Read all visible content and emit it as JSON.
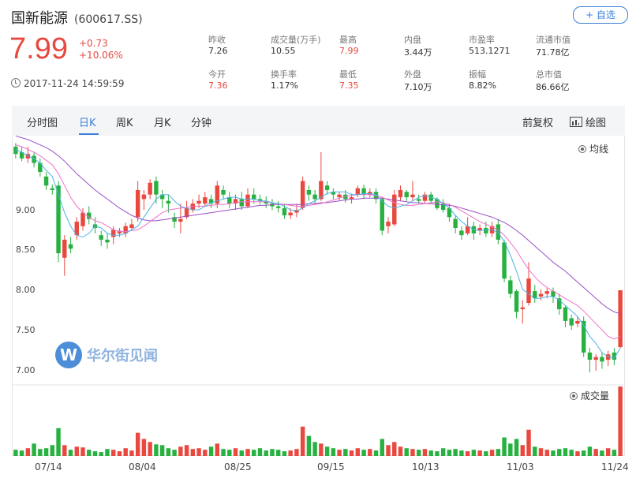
{
  "stock": {
    "name": "国新能源",
    "code": "(600617.SS)",
    "watch_label": "+ 自选",
    "price": "7.99",
    "change": "+0.73",
    "change_pct": "+10.06%",
    "timestamp": "2017-11-24 14:59:59"
  },
  "stats": [
    {
      "label": "昨收",
      "value": "7.26",
      "red": false
    },
    {
      "label": "成交量(万手)",
      "value": "10.55",
      "red": false
    },
    {
      "label": "最高",
      "value": "7.99",
      "red": true
    },
    {
      "label": "内盘",
      "value": "3.44万",
      "red": false
    },
    {
      "label": "市盈率",
      "value": "513.1271",
      "red": false
    },
    {
      "label": "流通市值",
      "value": "71.78亿",
      "red": false
    },
    {
      "label": "今开",
      "value": "7.36",
      "red": true
    },
    {
      "label": "换手率",
      "value": "1.17%",
      "red": false
    },
    {
      "label": "最低",
      "value": "7.35",
      "red": true
    },
    {
      "label": "外盘",
      "value": "7.10万",
      "red": false
    },
    {
      "label": "振幅",
      "value": "8.82%",
      "red": false
    },
    {
      "label": "总市值",
      "value": "86.66亿",
      "red": false
    }
  ],
  "tabs": [
    "分时图",
    "日K",
    "周K",
    "月K",
    "分钟"
  ],
  "active_tab": "日K",
  "right_tabs": {
    "adjust": "前复权",
    "draw": "绘图"
  },
  "legend": {
    "ma": "均线",
    "volume": "成交量"
  },
  "watermark": {
    "logo": "W",
    "text": "华尔街见闻"
  },
  "colors": {
    "up": "#e9483f",
    "down": "#27b140",
    "ma5": "#4cb3e8",
    "ma10": "#f070c8",
    "ma20": "#9b4fc8",
    "accent": "#3d80d8"
  },
  "chart_data": {
    "type": "candlestick",
    "y_ticks": [
      "9.00",
      "8.50",
      "8.00",
      "7.50",
      "7.00"
    ],
    "x_labels": [
      "07/14",
      "08/04",
      "08/25",
      "09/15",
      "10/13",
      "11/03",
      "11/24"
    ],
    "ylim": [
      6.95,
      9.65
    ],
    "candles": [
      [
        9.58,
        9.5,
        9.62,
        9.45
      ],
      [
        9.52,
        9.45,
        9.58,
        9.42
      ],
      [
        9.45,
        9.5,
        9.58,
        9.4
      ],
      [
        9.48,
        9.4,
        9.52,
        9.35
      ],
      [
        9.4,
        9.3,
        9.45,
        9.25
      ],
      [
        9.25,
        9.15,
        9.3,
        9.1
      ],
      [
        9.12,
        9.1,
        9.16,
        9.05
      ],
      [
        9.15,
        8.4,
        9.2,
        8.3
      ],
      [
        8.35,
        8.55,
        8.6,
        8.15
      ],
      [
        8.5,
        8.45,
        8.58,
        8.4
      ],
      [
        8.6,
        8.75,
        8.8,
        8.55
      ],
      [
        8.7,
        8.85,
        8.9,
        8.65
      ],
      [
        8.85,
        8.78,
        8.92,
        8.72
      ],
      [
        8.72,
        8.68,
        8.8,
        8.62
      ],
      [
        8.6,
        8.55,
        8.65,
        8.48
      ],
      [
        8.55,
        8.52,
        8.62,
        8.45
      ],
      [
        8.58,
        8.66,
        8.7,
        8.5
      ],
      [
        8.62,
        8.65,
        8.68,
        8.58
      ],
      [
        8.62,
        8.7,
        8.74,
        8.58
      ],
      [
        8.68,
        8.72,
        8.78,
        8.66
      ],
      [
        8.8,
        9.1,
        9.2,
        8.75
      ],
      [
        9.0,
        9.05,
        9.1,
        8.88
      ],
      [
        9.05,
        9.18,
        9.22,
        9.0
      ],
      [
        9.2,
        9.05,
        9.25,
        8.95
      ],
      [
        9.05,
        9.0,
        9.1,
        8.9
      ],
      [
        8.98,
        8.95,
        9.05,
        8.85
      ],
      [
        8.8,
        8.75,
        8.85,
        8.68
      ],
      [
        8.75,
        8.78,
        8.95,
        8.62
      ],
      [
        8.8,
        8.9,
        8.98,
        8.78
      ],
      [
        8.88,
        8.95,
        9.0,
        8.85
      ],
      [
        8.95,
        8.98,
        9.05,
        8.9
      ],
      [
        8.95,
        9.02,
        9.08,
        8.92
      ],
      [
        9.0,
        8.95,
        9.05,
        8.9
      ],
      [
        8.95,
        9.15,
        9.2,
        8.9
      ],
      [
        9.1,
        9.05,
        9.15,
        9.0
      ],
      [
        9.02,
        8.95,
        9.08,
        8.9
      ],
      [
        8.95,
        9.0,
        9.05,
        8.88
      ],
      [
        9.0,
        8.92,
        9.08,
        8.88
      ],
      [
        8.92,
        9.05,
        9.12,
        8.9
      ],
      [
        9.05,
        9.0,
        9.12,
        8.95
      ],
      [
        9.0,
        8.98,
        9.05,
        8.94
      ],
      [
        8.98,
        8.95,
        9.03,
        8.9
      ],
      [
        8.95,
        8.92,
        9.0,
        8.88
      ],
      [
        8.92,
        8.9,
        8.98,
        8.85
      ],
      [
        8.9,
        8.82,
        8.95,
        8.78
      ],
      [
        8.82,
        8.85,
        8.9,
        8.78
      ],
      [
        8.85,
        8.88,
        8.95,
        8.8
      ],
      [
        8.9,
        9.2,
        9.25,
        8.88
      ],
      [
        9.1,
        9.05,
        9.15,
        8.98
      ],
      [
        9.05,
        9.0,
        9.1,
        8.95
      ],
      [
        9.0,
        9.2,
        9.52,
        8.98
      ],
      [
        9.15,
        9.1,
        9.2,
        9.05
      ],
      [
        9.08,
        9.05,
        9.12,
        9.0
      ],
      [
        9.02,
        9.05,
        9.08,
        8.98
      ],
      [
        9.05,
        9.0,
        9.1,
        8.96
      ],
      [
        9.0,
        9.02,
        9.06,
        8.95
      ],
      [
        9.05,
        9.12,
        9.15,
        9.02
      ],
      [
        9.12,
        9.05,
        9.16,
        9.0
      ],
      [
        9.05,
        9.08,
        9.12,
        9.02
      ],
      [
        9.08,
        9.0,
        9.12,
        8.95
      ],
      [
        9.0,
        8.65,
        9.02,
        8.6
      ],
      [
        8.7,
        8.75,
        8.8,
        8.62
      ],
      [
        8.72,
        9.05,
        9.1,
        8.7
      ],
      [
        9.02,
        9.1,
        9.15,
        8.98
      ],
      [
        9.08,
        9.02,
        9.1,
        8.98
      ],
      [
        9.02,
        9.05,
        9.2,
        8.98
      ],
      [
        9.0,
        8.98,
        9.05,
        8.95
      ],
      [
        8.98,
        9.05,
        9.08,
        8.95
      ],
      [
        9.05,
        8.98,
        9.08,
        8.95
      ],
      [
        9.0,
        8.9,
        9.02,
        8.88
      ],
      [
        8.95,
        8.88,
        9.0,
        8.85
      ],
      [
        8.9,
        8.8,
        8.95,
        8.75
      ],
      [
        8.78,
        8.68,
        8.82,
        8.62
      ],
      [
        8.65,
        8.6,
        8.7,
        8.55
      ],
      [
        8.62,
        8.7,
        8.8,
        8.6
      ],
      [
        8.7,
        8.62,
        8.75,
        8.55
      ],
      [
        8.65,
        8.68,
        8.72,
        8.6
      ],
      [
        8.68,
        8.62,
        8.75,
        8.58
      ],
      [
        8.62,
        8.7,
        8.75,
        8.58
      ],
      [
        8.72,
        8.55,
        8.78,
        8.5
      ],
      [
        8.52,
        8.12,
        8.55,
        8.08
      ],
      [
        8.1,
        7.95,
        8.15,
        7.9
      ],
      [
        7.98,
        7.75,
        8.0,
        7.68
      ],
      [
        7.78,
        7.8,
        7.88,
        7.62
      ],
      [
        7.85,
        8.12,
        8.3,
        7.82
      ],
      [
        7.98,
        7.9,
        8.05,
        7.85
      ],
      [
        7.92,
        7.95,
        8.0,
        7.88
      ],
      [
        7.95,
        7.98,
        8.02,
        7.9
      ],
      [
        7.98,
        7.92,
        8.02,
        7.85
      ],
      [
        7.9,
        7.78,
        7.95,
        7.72
      ],
      [
        7.8,
        7.65,
        7.82,
        7.58
      ],
      [
        7.68,
        7.6,
        7.72,
        7.55
      ],
      [
        7.62,
        7.65,
        7.7,
        7.58
      ],
      [
        7.65,
        7.3,
        7.7,
        7.25
      ],
      [
        7.3,
        7.22,
        7.35,
        7.08
      ],
      [
        7.22,
        7.25,
        7.28,
        7.1
      ],
      [
        7.25,
        7.2,
        7.3,
        7.12
      ],
      [
        7.22,
        7.28,
        7.32,
        7.15
      ],
      [
        7.3,
        7.22,
        7.35,
        7.16
      ],
      [
        7.36,
        7.99,
        7.99,
        7.35
      ]
    ],
    "ma5": [
      9.55,
      9.52,
      9.48,
      9.45,
      9.4,
      9.32,
      9.25,
      9.05,
      8.85,
      8.7,
      8.6,
      8.58,
      8.62,
      8.7,
      8.68,
      8.62,
      8.6,
      8.6,
      8.62,
      8.66,
      8.7,
      8.8,
      8.9,
      9.0,
      9.05,
      9.05,
      8.98,
      8.92,
      8.9,
      8.88,
      8.88,
      8.92,
      8.96,
      8.98,
      9.0,
      9.02,
      9.02,
      9.0,
      9.0,
      9.0,
      8.98,
      8.98,
      8.96,
      8.95,
      8.92,
      8.88,
      8.87,
      8.9,
      8.95,
      8.98,
      9.02,
      9.06,
      9.08,
      9.08,
      9.08,
      9.05,
      9.05,
      9.06,
      9.06,
      9.05,
      8.98,
      8.92,
      8.9,
      8.92,
      8.94,
      8.98,
      9.02,
      9.04,
      9.02,
      9.0,
      8.95,
      8.9,
      8.82,
      8.75,
      8.7,
      8.66,
      8.65,
      8.66,
      8.66,
      8.63,
      8.53,
      8.38,
      8.2,
      8.0,
      7.95,
      7.9,
      7.9,
      7.92,
      7.92,
      7.88,
      7.82,
      7.76,
      7.7,
      7.6,
      7.48,
      7.4,
      7.3,
      7.25,
      7.24,
      7.35
    ],
    "ma10": [
      9.6,
      9.58,
      9.55,
      9.52,
      9.48,
      9.43,
      9.38,
      9.28,
      9.15,
      9.02,
      8.92,
      8.85,
      8.8,
      8.76,
      8.74,
      8.7,
      8.66,
      8.64,
      8.64,
      8.65,
      8.66,
      8.7,
      8.75,
      8.8,
      8.85,
      8.88,
      8.89,
      8.9,
      8.91,
      8.92,
      8.92,
      8.92,
      8.93,
      8.94,
      8.94,
      8.95,
      8.96,
      8.97,
      8.97,
      8.97,
      8.97,
      8.97,
      8.96,
      8.95,
      8.94,
      8.93,
      8.92,
      8.92,
      8.93,
      8.94,
      8.95,
      8.97,
      8.99,
      9.01,
      9.03,
      9.04,
      9.05,
      9.05,
      9.05,
      9.04,
      9.02,
      8.99,
      8.96,
      8.94,
      8.93,
      8.93,
      8.94,
      8.95,
      8.96,
      8.97,
      8.96,
      8.94,
      8.91,
      8.87,
      8.83,
      8.79,
      8.75,
      8.72,
      8.69,
      8.66,
      8.6,
      8.52,
      8.43,
      8.32,
      8.22,
      8.14,
      8.07,
      8.02,
      7.98,
      7.94,
      7.9,
      7.86,
      7.82,
      7.76,
      7.69,
      7.62,
      7.55,
      7.48,
      7.45,
      7.48
    ],
    "ma20": [
      9.7,
      9.68,
      9.66,
      9.63,
      9.6,
      9.57,
      9.53,
      9.48,
      9.42,
      9.35,
      9.28,
      9.22,
      9.16,
      9.1,
      9.05,
      9.0,
      8.95,
      8.9,
      8.86,
      8.82,
      8.79,
      8.77,
      8.76,
      8.76,
      8.77,
      8.78,
      8.79,
      8.8,
      8.81,
      8.82,
      8.83,
      8.84,
      8.85,
      8.86,
      8.87,
      8.88,
      8.89,
      8.9,
      8.91,
      8.92,
      8.93,
      8.93,
      8.94,
      8.94,
      8.94,
      8.94,
      8.94,
      8.94,
      8.95,
      8.95,
      8.96,
      8.96,
      8.97,
      8.98,
      8.99,
      9.0,
      9.0,
      9.01,
      9.01,
      9.01,
      9.01,
      9.0,
      8.99,
      8.98,
      8.97,
      8.96,
      8.96,
      8.95,
      8.95,
      8.94,
      8.94,
      8.93,
      8.92,
      8.9,
      8.88,
      8.86,
      8.84,
      8.82,
      8.8,
      8.77,
      8.74,
      8.7,
      8.65,
      8.6,
      8.54,
      8.48,
      8.42,
      8.36,
      8.3,
      8.25,
      8.2,
      8.14,
      8.08,
      8.02,
      7.96,
      7.9,
      7.84,
      7.79,
      7.75,
      7.73
    ],
    "volume": [
      8,
      7,
      10,
      16,
      9,
      10,
      14,
      36,
      14,
      8,
      12,
      11,
      8,
      6,
      5,
      9,
      8,
      6,
      10,
      7,
      30,
      22,
      18,
      15,
      14,
      10,
      8,
      12,
      14,
      9,
      10,
      8,
      12,
      16,
      9,
      8,
      10,
      7,
      9,
      8,
      10,
      7,
      9,
      8,
      6,
      7,
      9,
      38,
      26,
      18,
      16,
      12,
      10,
      8,
      9,
      7,
      10,
      8,
      9,
      7,
      22,
      14,
      18,
      12,
      10,
      9,
      8,
      9,
      7,
      6,
      10,
      8,
      9,
      7,
      6,
      8,
      7,
      6,
      8,
      9,
      24,
      16,
      22,
      14,
      34,
      12,
      10,
      8,
      7,
      9,
      10,
      8,
      6,
      7,
      12,
      9,
      7,
      10,
      8,
      90
    ],
    "volume_max": 90
  }
}
